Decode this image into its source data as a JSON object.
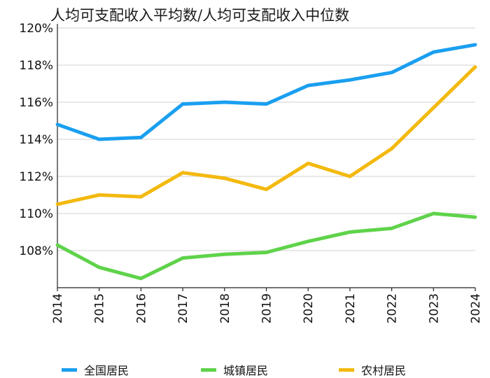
{
  "chart_data": {
    "type": "line",
    "title": "人均可支配收入平均数/人均可支配收入中位数",
    "x": [
      "2014",
      "2015",
      "2016",
      "2017",
      "2018",
      "2019",
      "2020",
      "2021",
      "2022",
      "2023",
      "2024"
    ],
    "ylim": [
      106.0,
      120.0
    ],
    "yticks": [
      108,
      110,
      112,
      114,
      116,
      118,
      120
    ],
    "ytick_labels": [
      "108%",
      "110%",
      "112%",
      "114%",
      "116%",
      "118%",
      "120%"
    ],
    "grid": true,
    "legend_position": "bottom",
    "series": [
      {
        "name": "全国居民",
        "color": "#1a9ff0",
        "values": [
          114.8,
          114.0,
          114.1,
          115.9,
          116.0,
          115.9,
          116.9,
          117.2,
          117.6,
          118.7,
          119.1
        ]
      },
      {
        "name": "城镇居民",
        "color": "#5fd34a",
        "values": [
          108.3,
          107.1,
          106.5,
          107.6,
          107.8,
          107.9,
          108.5,
          109.0,
          109.2,
          110.0,
          109.8
        ]
      },
      {
        "name": "农村居民",
        "color": "#f3b90f",
        "values": [
          110.5,
          111.0,
          110.9,
          112.2,
          111.9,
          111.3,
          112.7,
          112.0,
          113.5,
          115.7,
          117.9
        ]
      }
    ]
  }
}
